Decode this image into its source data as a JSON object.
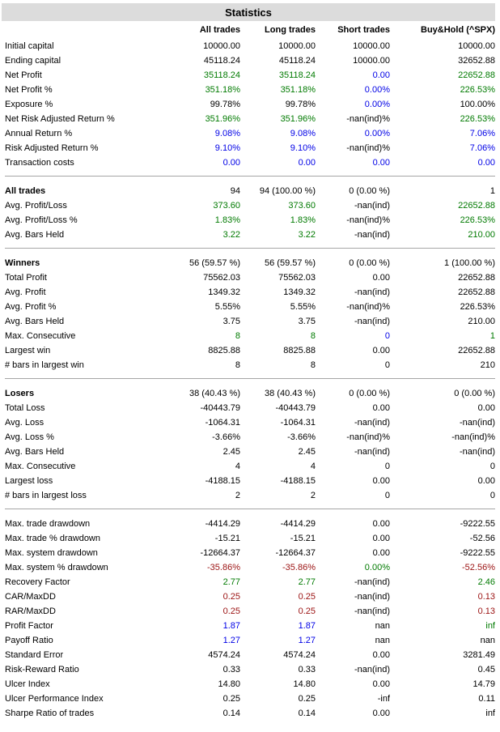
{
  "title": "Statistics",
  "columns": [
    "All trades",
    "Long trades",
    "Short trades",
    "Buy&Hold (^SPX)"
  ],
  "palette": {
    "black": "#000000",
    "green": "#007a00",
    "blue": "#0000e6",
    "red": "#9b1212",
    "title_bar_bg": "#dcdcdc",
    "separator": "#a6a6a6"
  },
  "color_legend": {
    "k": "black",
    "g": "green",
    "b": "blue",
    "r": "red"
  },
  "sections": [
    {
      "rows": [
        {
          "label": "Initial capital",
          "bold": false,
          "values": [
            "10000.00",
            "10000.00",
            "10000.00",
            "10000.00"
          ],
          "colors": [
            "k",
            "k",
            "k",
            "k"
          ]
        },
        {
          "label": "Ending capital",
          "bold": false,
          "values": [
            "45118.24",
            "45118.24",
            "10000.00",
            "32652.88"
          ],
          "colors": [
            "k",
            "k",
            "k",
            "k"
          ]
        },
        {
          "label": "Net Profit",
          "bold": false,
          "values": [
            "35118.24",
            "35118.24",
            "0.00",
            "22652.88"
          ],
          "colors": [
            "g",
            "g",
            "b",
            "g"
          ]
        },
        {
          "label": "Net Profit %",
          "bold": false,
          "values": [
            "351.18%",
            "351.18%",
            "0.00%",
            "226.53%"
          ],
          "colors": [
            "g",
            "g",
            "b",
            "g"
          ]
        },
        {
          "label": "Exposure %",
          "bold": false,
          "values": [
            "99.78%",
            "99.78%",
            "0.00%",
            "100.00%"
          ],
          "colors": [
            "k",
            "k",
            "b",
            "k"
          ]
        },
        {
          "label": "Net Risk Adjusted Return %",
          "bold": false,
          "values": [
            "351.96%",
            "351.96%",
            "-nan(ind)%",
            "226.53%"
          ],
          "colors": [
            "g",
            "g",
            "k",
            "g"
          ]
        },
        {
          "label": "Annual Return %",
          "bold": false,
          "values": [
            "9.08%",
            "9.08%",
            "0.00%",
            "7.06%"
          ],
          "colors": [
            "b",
            "b",
            "b",
            "b"
          ]
        },
        {
          "label": "Risk Adjusted Return %",
          "bold": false,
          "values": [
            "9.10%",
            "9.10%",
            "-nan(ind)%",
            "7.06%"
          ],
          "colors": [
            "b",
            "b",
            "k",
            "b"
          ]
        },
        {
          "label": "Transaction costs",
          "bold": false,
          "values": [
            "0.00",
            "0.00",
            "0.00",
            "0.00"
          ],
          "colors": [
            "b",
            "b",
            "b",
            "b"
          ]
        }
      ]
    },
    {
      "rows": [
        {
          "label": "All trades",
          "bold": true,
          "values": [
            "94",
            "94 (100.00 %)",
            "0 (0.00 %)",
            "1"
          ],
          "colors": [
            "k",
            "k",
            "k",
            "k"
          ]
        },
        {
          "label": "Avg. Profit/Loss",
          "bold": false,
          "values": [
            "373.60",
            "373.60",
            "-nan(ind)",
            "22652.88"
          ],
          "colors": [
            "g",
            "g",
            "k",
            "g"
          ]
        },
        {
          "label": "Avg. Profit/Loss %",
          "bold": false,
          "values": [
            "1.83%",
            "1.83%",
            "-nan(ind)%",
            "226.53%"
          ],
          "colors": [
            "g",
            "g",
            "k",
            "g"
          ]
        },
        {
          "label": "Avg. Bars Held",
          "bold": false,
          "values": [
            "3.22",
            "3.22",
            "-nan(ind)",
            "210.00"
          ],
          "colors": [
            "g",
            "g",
            "k",
            "g"
          ]
        }
      ]
    },
    {
      "rows": [
        {
          "label": "Winners",
          "bold": true,
          "values": [
            "56 (59.57 %)",
            "56 (59.57 %)",
            "0 (0.00 %)",
            "1 (100.00 %)"
          ],
          "colors": [
            "k",
            "k",
            "k",
            "k"
          ]
        },
        {
          "label": "Total Profit",
          "bold": false,
          "values": [
            "75562.03",
            "75562.03",
            "0.00",
            "22652.88"
          ],
          "colors": [
            "k",
            "k",
            "k",
            "k"
          ]
        },
        {
          "label": "Avg. Profit",
          "bold": false,
          "values": [
            "1349.32",
            "1349.32",
            "-nan(ind)",
            "22652.88"
          ],
          "colors": [
            "k",
            "k",
            "k",
            "k"
          ]
        },
        {
          "label": "Avg. Profit %",
          "bold": false,
          "values": [
            "5.55%",
            "5.55%",
            "-nan(ind)%",
            "226.53%"
          ],
          "colors": [
            "k",
            "k",
            "k",
            "k"
          ]
        },
        {
          "label": "Avg. Bars Held",
          "bold": false,
          "values": [
            "3.75",
            "3.75",
            "-nan(ind)",
            "210.00"
          ],
          "colors": [
            "k",
            "k",
            "k",
            "k"
          ]
        },
        {
          "label": "Max. Consecutive",
          "bold": false,
          "values": [
            "8",
            "8",
            "0",
            "1"
          ],
          "colors": [
            "g",
            "g",
            "b",
            "g"
          ]
        },
        {
          "label": "Largest win",
          "bold": false,
          "values": [
            "8825.88",
            "8825.88",
            "0.00",
            "22652.88"
          ],
          "colors": [
            "k",
            "k",
            "k",
            "k"
          ]
        },
        {
          "label": "# bars in largest win",
          "bold": false,
          "values": [
            "8",
            "8",
            "0",
            "210"
          ],
          "colors": [
            "k",
            "k",
            "k",
            "k"
          ]
        }
      ]
    },
    {
      "rows": [
        {
          "label": "Losers",
          "bold": true,
          "values": [
            "38 (40.43 %)",
            "38 (40.43 %)",
            "0 (0.00 %)",
            "0 (0.00 %)"
          ],
          "colors": [
            "k",
            "k",
            "k",
            "k"
          ]
        },
        {
          "label": "Total Loss",
          "bold": false,
          "values": [
            "-40443.79",
            "-40443.79",
            "0.00",
            "0.00"
          ],
          "colors": [
            "k",
            "k",
            "k",
            "k"
          ]
        },
        {
          "label": "Avg. Loss",
          "bold": false,
          "values": [
            "-1064.31",
            "-1064.31",
            "-nan(ind)",
            "-nan(ind)"
          ],
          "colors": [
            "k",
            "k",
            "k",
            "k"
          ]
        },
        {
          "label": "Avg. Loss %",
          "bold": false,
          "values": [
            "-3.66%",
            "-3.66%",
            "-nan(ind)%",
            "-nan(ind)%"
          ],
          "colors": [
            "k",
            "k",
            "k",
            "k"
          ]
        },
        {
          "label": "Avg. Bars Held",
          "bold": false,
          "values": [
            "2.45",
            "2.45",
            "-nan(ind)",
            "-nan(ind)"
          ],
          "colors": [
            "k",
            "k",
            "k",
            "k"
          ]
        },
        {
          "label": "Max. Consecutive",
          "bold": false,
          "values": [
            "4",
            "4",
            "0",
            "0"
          ],
          "colors": [
            "k",
            "k",
            "k",
            "k"
          ]
        },
        {
          "label": "Largest loss",
          "bold": false,
          "values": [
            "-4188.15",
            "-4188.15",
            "0.00",
            "0.00"
          ],
          "colors": [
            "k",
            "k",
            "k",
            "k"
          ]
        },
        {
          "label": "# bars in largest loss",
          "bold": false,
          "values": [
            "2",
            "2",
            "0",
            "0"
          ],
          "colors": [
            "k",
            "k",
            "k",
            "k"
          ]
        }
      ]
    },
    {
      "rows": [
        {
          "label": "Max. trade drawdown",
          "bold": false,
          "values": [
            "-4414.29",
            "-4414.29",
            "0.00",
            "-9222.55"
          ],
          "colors": [
            "k",
            "k",
            "k",
            "k"
          ]
        },
        {
          "label": "Max. trade % drawdown",
          "bold": false,
          "values": [
            "-15.21",
            "-15.21",
            "0.00",
            "-52.56"
          ],
          "colors": [
            "k",
            "k",
            "k",
            "k"
          ]
        },
        {
          "label": "Max. system drawdown",
          "bold": false,
          "values": [
            "-12664.37",
            "-12664.37",
            "0.00",
            "-9222.55"
          ],
          "colors": [
            "k",
            "k",
            "k",
            "k"
          ]
        },
        {
          "label": "Max. system % drawdown",
          "bold": false,
          "values": [
            "-35.86%",
            "-35.86%",
            "0.00%",
            "-52.56%"
          ],
          "colors": [
            "r",
            "r",
            "g",
            "r"
          ]
        },
        {
          "label": "Recovery Factor",
          "bold": false,
          "values": [
            "2.77",
            "2.77",
            "-nan(ind)",
            "2.46"
          ],
          "colors": [
            "g",
            "g",
            "k",
            "g"
          ]
        },
        {
          "label": "CAR/MaxDD",
          "bold": false,
          "values": [
            "0.25",
            "0.25",
            "-nan(ind)",
            "0.13"
          ],
          "colors": [
            "r",
            "r",
            "k",
            "r"
          ]
        },
        {
          "label": "RAR/MaxDD",
          "bold": false,
          "values": [
            "0.25",
            "0.25",
            "-nan(ind)",
            "0.13"
          ],
          "colors": [
            "r",
            "r",
            "k",
            "r"
          ]
        },
        {
          "label": "Profit Factor",
          "bold": false,
          "values": [
            "1.87",
            "1.87",
            "nan",
            "inf"
          ],
          "colors": [
            "b",
            "b",
            "k",
            "g"
          ]
        },
        {
          "label": "Payoff Ratio",
          "bold": false,
          "values": [
            "1.27",
            "1.27",
            "nan",
            "nan"
          ],
          "colors": [
            "b",
            "b",
            "k",
            "k"
          ]
        },
        {
          "label": "Standard Error",
          "bold": false,
          "values": [
            "4574.24",
            "4574.24",
            "0.00",
            "3281.49"
          ],
          "colors": [
            "k",
            "k",
            "k",
            "k"
          ]
        },
        {
          "label": "Risk-Reward Ratio",
          "bold": false,
          "values": [
            "0.33",
            "0.33",
            "-nan(ind)",
            "0.45"
          ],
          "colors": [
            "k",
            "k",
            "k",
            "k"
          ]
        },
        {
          "label": "Ulcer Index",
          "bold": false,
          "values": [
            "14.80",
            "14.80",
            "0.00",
            "14.79"
          ],
          "colors": [
            "k",
            "k",
            "k",
            "k"
          ]
        },
        {
          "label": "Ulcer Performance Index",
          "bold": false,
          "values": [
            "0.25",
            "0.25",
            "-inf",
            "0.11"
          ],
          "colors": [
            "k",
            "k",
            "k",
            "k"
          ]
        },
        {
          "label": "Sharpe Ratio of trades",
          "bold": false,
          "values": [
            "0.14",
            "0.14",
            "0.00",
            "inf"
          ],
          "colors": [
            "k",
            "k",
            "k",
            "k"
          ]
        }
      ]
    }
  ]
}
